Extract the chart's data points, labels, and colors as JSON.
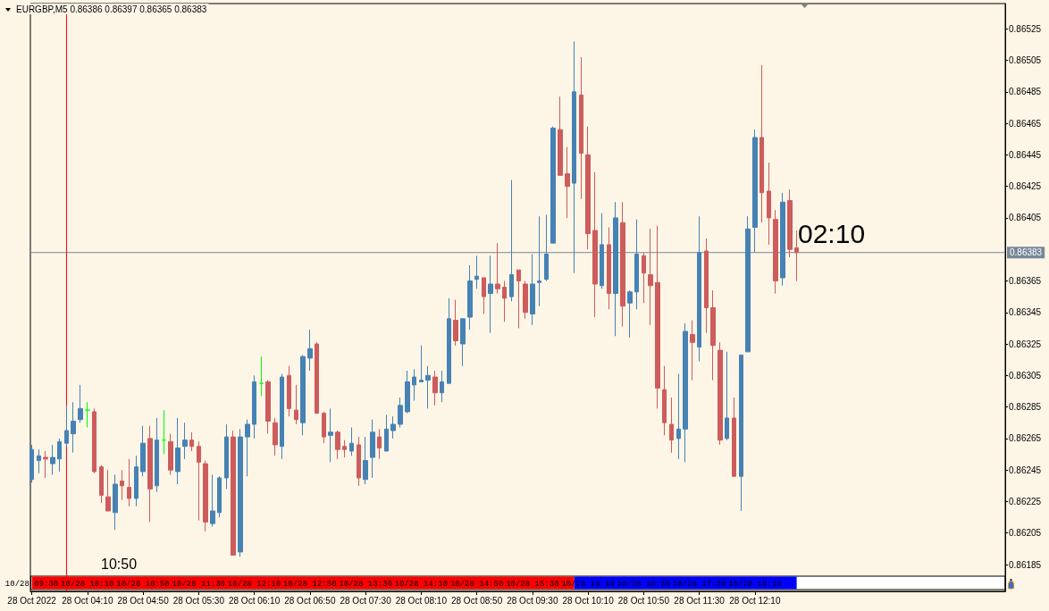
{
  "chart_data": {
    "type": "candlestick",
    "title": "EURGBP,M5 0.86386 0.86397 0.86365 0.86383",
    "x": [
      "2022-10-28T03:30",
      "2022-10-28T03:35",
      "2022-10-28T03:40",
      "2022-10-28T03:45",
      "2022-10-28T03:50",
      "2022-10-28T03:55",
      "2022-10-28T04:00",
      "2022-10-28T04:05",
      "2022-10-28T04:10",
      "2022-10-28T04:15",
      "2022-10-28T04:20",
      "2022-10-28T04:25",
      "2022-10-28T04:30",
      "2022-10-28T04:35",
      "2022-10-28T04:40",
      "2022-10-28T04:45",
      "2022-10-28T04:50",
      "2022-10-28T04:55",
      "2022-10-28T05:00",
      "2022-10-28T05:05",
      "2022-10-28T05:10",
      "2022-10-28T05:15",
      "2022-10-28T05:20",
      "2022-10-28T05:25",
      "2022-10-28T05:30",
      "2022-10-28T05:35",
      "2022-10-28T05:40",
      "2022-10-28T05:45",
      "2022-10-28T05:50",
      "2022-10-28T05:55",
      "2022-10-28T06:00",
      "2022-10-28T06:05",
      "2022-10-28T06:10",
      "2022-10-28T06:15",
      "2022-10-28T06:20",
      "2022-10-28T06:25",
      "2022-10-28T06:30",
      "2022-10-28T06:35",
      "2022-10-28T06:40",
      "2022-10-28T06:45",
      "2022-10-28T06:50",
      "2022-10-28T06:55",
      "2022-10-28T07:00",
      "2022-10-28T07:05",
      "2022-10-28T07:10",
      "2022-10-28T07:15",
      "2022-10-28T07:20",
      "2022-10-28T07:25",
      "2022-10-28T07:30",
      "2022-10-28T07:35",
      "2022-10-28T07:40",
      "2022-10-28T07:45",
      "2022-10-28T07:50",
      "2022-10-28T07:55",
      "2022-10-28T08:00",
      "2022-10-28T08:05",
      "2022-10-28T08:10",
      "2022-10-28T08:15",
      "2022-10-28T08:20",
      "2022-10-28T08:25",
      "2022-10-28T08:30",
      "2022-10-28T08:35",
      "2022-10-28T08:40",
      "2022-10-28T08:45",
      "2022-10-28T08:50",
      "2022-10-28T08:55",
      "2022-10-28T09:00",
      "2022-10-28T09:05",
      "2022-10-28T09:10",
      "2022-10-28T09:15",
      "2022-10-28T09:20",
      "2022-10-28T09:25",
      "2022-10-28T09:30",
      "2022-10-28T09:35",
      "2022-10-28T09:40",
      "2022-10-28T09:45",
      "2022-10-28T09:50",
      "2022-10-28T09:55",
      "2022-10-28T10:00",
      "2022-10-28T10:05",
      "2022-10-28T10:10",
      "2022-10-28T10:15",
      "2022-10-28T10:20",
      "2022-10-28T10:25",
      "2022-10-28T10:30",
      "2022-10-28T10:35",
      "2022-10-28T10:40",
      "2022-10-28T10:45",
      "2022-10-28T10:50",
      "2022-10-28T10:55",
      "2022-10-28T11:00",
      "2022-10-28T11:05",
      "2022-10-28T11:10",
      "2022-10-28T11:15",
      "2022-10-28T11:20",
      "2022-10-28T11:25",
      "2022-10-28T11:30",
      "2022-10-28T11:35",
      "2022-10-28T11:40",
      "2022-10-28T11:45",
      "2022-10-28T11:50",
      "2022-10-28T11:55",
      "2022-10-28T12:00",
      "2022-10-28T12:05",
      "2022-10-28T12:10",
      "2022-10-28T12:15",
      "2022-10-28T12:20",
      "2022-10-28T12:25",
      "2022-10-28T12:30",
      "2022-10-28T12:35",
      "2022-10-28T12:40"
    ],
    "ohlc": [
      [
        0.86239,
        0.86261,
        0.86237,
        0.86258
      ],
      [
        0.86251,
        0.86258,
        0.86243,
        0.86254
      ],
      [
        0.86253,
        0.86257,
        0.8624,
        0.86252
      ],
      [
        0.86249,
        0.86261,
        0.86242,
        0.86253
      ],
      [
        0.86252,
        0.86265,
        0.86244,
        0.86263
      ],
      [
        0.86262,
        0.86286,
        0.8626,
        0.8627
      ],
      [
        0.86268,
        0.86288,
        0.86256,
        0.86276
      ],
      [
        0.86277,
        0.86299,
        0.86275,
        0.86284
      ],
      [
        0.86283,
        0.86288,
        0.86272,
        0.86283
      ],
      [
        0.86282,
        0.86284,
        0.86243,
        0.86244
      ],
      [
        0.86247,
        0.86248,
        0.86224,
        0.86229
      ],
      [
        0.86228,
        0.86245,
        0.86219,
        0.86219
      ],
      [
        0.86218,
        0.86242,
        0.86207,
        0.86236
      ],
      [
        0.86238,
        0.86245,
        0.86226,
        0.86235
      ],
      [
        0.86234,
        0.86252,
        0.86222,
        0.86227
      ],
      [
        0.86227,
        0.86254,
        0.86222,
        0.86247
      ],
      [
        0.86244,
        0.86273,
        0.86241,
        0.86262
      ],
      [
        0.86265,
        0.86273,
        0.86212,
        0.86233
      ],
      [
        0.86235,
        0.86278,
        0.86231,
        0.86264
      ],
      [
        0.86264,
        0.86283,
        0.86255,
        0.86264
      ],
      [
        0.86263,
        0.86268,
        0.86242,
        0.86245
      ],
      [
        0.86244,
        0.86278,
        0.86236,
        0.86259
      ],
      [
        0.8626,
        0.86275,
        0.86252,
        0.86264
      ],
      [
        0.86264,
        0.86269,
        0.86257,
        0.8626
      ],
      [
        0.8626,
        0.86263,
        0.86213,
        0.8625
      ],
      [
        0.86249,
        0.86251,
        0.86206,
        0.86212
      ],
      [
        0.86211,
        0.86242,
        0.86209,
        0.86219
      ],
      [
        0.86218,
        0.86241,
        0.86215,
        0.8624
      ],
      [
        0.8624,
        0.86274,
        0.86233,
        0.86266
      ],
      [
        0.86266,
        0.8627,
        0.86191,
        0.86191
      ],
      [
        0.86193,
        0.86271,
        0.8619,
        0.86266
      ],
      [
        0.86266,
        0.86277,
        0.86241,
        0.86274
      ],
      [
        0.86274,
        0.86305,
        0.86265,
        0.86301
      ],
      [
        0.863,
        0.86317,
        0.86292,
        0.863
      ],
      [
        0.86301,
        0.86302,
        0.86268,
        0.86276
      ],
      [
        0.86275,
        0.86278,
        0.86254,
        0.86261
      ],
      [
        0.8626,
        0.86306,
        0.86252,
        0.86304
      ],
      [
        0.86305,
        0.86311,
        0.86279,
        0.86284
      ],
      [
        0.86283,
        0.86299,
        0.86274,
        0.86277
      ],
      [
        0.86275,
        0.86318,
        0.86267,
        0.86317
      ],
      [
        0.86316,
        0.86334,
        0.86308,
        0.86322
      ],
      [
        0.86325,
        0.86326,
        0.86281,
        0.86281
      ],
      [
        0.86281,
        0.86282,
        0.86262,
        0.86266
      ],
      [
        0.86267,
        0.86284,
        0.8625,
        0.86269
      ],
      [
        0.86269,
        0.8627,
        0.86252,
        0.86258
      ],
      [
        0.8626,
        0.86264,
        0.86253,
        0.86258
      ],
      [
        0.86257,
        0.86272,
        0.86254,
        0.86262
      ],
      [
        0.86261,
        0.86266,
        0.86235,
        0.8624
      ],
      [
        0.86239,
        0.86266,
        0.86236,
        0.86251
      ],
      [
        0.86253,
        0.86277,
        0.8624,
        0.86269
      ],
      [
        0.86266,
        0.86271,
        0.86252,
        0.86259
      ],
      [
        0.86257,
        0.8628,
        0.86257,
        0.86271
      ],
      [
        0.8627,
        0.86279,
        0.86265,
        0.86274
      ],
      [
        0.86274,
        0.86291,
        0.86272,
        0.86286
      ],
      [
        0.86282,
        0.86308,
        0.86281,
        0.86301
      ],
      [
        0.86299,
        0.86309,
        0.86289,
        0.86304
      ],
      [
        0.86301,
        0.86324,
        0.86301,
        0.86302
      ],
      [
        0.86302,
        0.86311,
        0.86284,
        0.86305
      ],
      [
        0.86304,
        0.86308,
        0.86286,
        0.86294
      ],
      [
        0.86294,
        0.86308,
        0.86288,
        0.86301
      ],
      [
        0.863,
        0.86354,
        0.863,
        0.86341
      ],
      [
        0.8634,
        0.86353,
        0.86324,
        0.86327
      ],
      [
        0.86325,
        0.86341,
        0.86311,
        0.86341
      ],
      [
        0.86342,
        0.86375,
        0.86334,
        0.86365
      ],
      [
        0.86366,
        0.86381,
        0.8636,
        0.86368
      ],
      [
        0.86367,
        0.86367,
        0.86344,
        0.86355
      ],
      [
        0.86357,
        0.86381,
        0.86332,
        0.86363
      ],
      [
        0.86363,
        0.86389,
        0.86357,
        0.8636
      ],
      [
        0.86361,
        0.86365,
        0.86339,
        0.86354
      ],
      [
        0.86355,
        0.86429,
        0.86352,
        0.86369
      ],
      [
        0.86372,
        0.86372,
        0.86335,
        0.86365
      ],
      [
        0.86363,
        0.86365,
        0.86341,
        0.86345
      ],
      [
        0.86344,
        0.86382,
        0.86337,
        0.86363
      ],
      [
        0.86364,
        0.86406,
        0.86349,
        0.86365
      ],
      [
        0.86366,
        0.86407,
        0.86365,
        0.86382
      ],
      [
        0.86389,
        0.86463,
        0.86389,
        0.86462
      ],
      [
        0.86461,
        0.86482,
        0.86432,
        0.86432
      ],
      [
        0.86433,
        0.8645,
        0.86405,
        0.86425
      ],
      [
        0.86427,
        0.86517,
        0.8637,
        0.86485
      ],
      [
        0.86483,
        0.86507,
        0.86417,
        0.86446
      ],
      [
        0.86445,
        0.86463,
        0.86385,
        0.86395
      ],
      [
        0.86397,
        0.86434,
        0.86342,
        0.86363
      ],
      [
        0.86362,
        0.86408,
        0.8636,
        0.86388
      ],
      [
        0.86388,
        0.86399,
        0.86347,
        0.86357
      ],
      [
        0.86357,
        0.86415,
        0.8633,
        0.86405
      ],
      [
        0.86402,
        0.86415,
        0.86336,
        0.86349
      ],
      [
        0.86351,
        0.86359,
        0.86329,
        0.86358
      ],
      [
        0.86358,
        0.86404,
        0.86347,
        0.86382
      ],
      [
        0.86381,
        0.86383,
        0.86351,
        0.8637
      ],
      [
        0.86369,
        0.86398,
        0.86337,
        0.86362
      ],
      [
        0.86364,
        0.864,
        0.86284,
        0.86297
      ],
      [
        0.86296,
        0.86311,
        0.86267,
        0.86275
      ],
      [
        0.86274,
        0.86291,
        0.86256,
        0.86264
      ],
      [
        0.86265,
        0.86306,
        0.86252,
        0.86271
      ],
      [
        0.86271,
        0.86338,
        0.8625,
        0.86333
      ],
      [
        0.86331,
        0.8634,
        0.86302,
        0.86326
      ],
      [
        0.86323,
        0.86406,
        0.86314,
        0.86383
      ],
      [
        0.86384,
        0.86392,
        0.86332,
        0.86348
      ],
      [
        0.86348,
        0.86359,
        0.86302,
        0.86324
      ],
      [
        0.86321,
        0.86326,
        0.86261,
        0.86264
      ],
      [
        0.86265,
        0.8632,
        0.86264,
        0.86278
      ],
      [
        0.86278,
        0.86291,
        0.86241,
        0.86241
      ],
      [
        0.86241,
        0.86318,
        0.86219,
        0.86318
      ],
      [
        0.8632,
        0.86406,
        0.8632,
        0.86398
      ],
      [
        0.86399,
        0.86461,
        0.86383,
        0.86456
      ],
      [
        0.86456,
        0.86502,
        0.86402,
        0.86421
      ],
      [
        0.86422,
        0.8644,
        0.86388,
        0.86405
      ],
      [
        0.86404,
        0.8641,
        0.86357,
        0.86365
      ],
      [
        0.86367,
        0.86421,
        0.86362,
        0.86415
      ],
      [
        0.86416,
        0.86423,
        0.8638,
        0.86385
      ],
      [
        0.86386,
        0.86397,
        0.86365,
        0.86383
      ]
    ],
    "colors": [
      "#4682b4",
      "#4682b4",
      "#cd5c5c",
      "#4682b4",
      "#4682b4",
      "#4682b4",
      "#4682b4",
      "#4682b4",
      "#00ff00",
      "#cd5c5c",
      "#cd5c5c",
      "#cd5c5c",
      "#4682b4",
      "#cd5c5c",
      "#cd5c5c",
      "#4682b4",
      "#4682b4",
      "#cd5c5c",
      "#4682b4",
      "#00ff00",
      "#cd5c5c",
      "#4682b4",
      "#4682b4",
      "#cd5c5c",
      "#cd5c5c",
      "#cd5c5c",
      "#4682b4",
      "#4682b4",
      "#4682b4",
      "#cd5c5c",
      "#4682b4",
      "#4682b4",
      "#4682b4",
      "#00ff00",
      "#cd5c5c",
      "#cd5c5c",
      "#4682b4",
      "#cd5c5c",
      "#cd5c5c",
      "#4682b4",
      "#4682b4",
      "#cd5c5c",
      "#cd5c5c",
      "#4682b4",
      "#cd5c5c",
      "#cd5c5c",
      "#4682b4",
      "#cd5c5c",
      "#4682b4",
      "#4682b4",
      "#cd5c5c",
      "#4682b4",
      "#4682b4",
      "#4682b4",
      "#4682b4",
      "#4682b4",
      "#4682b4",
      "#4682b4",
      "#cd5c5c",
      "#4682b4",
      "#4682b4",
      "#cd5c5c",
      "#4682b4",
      "#4682b4",
      "#4682b4",
      "#cd5c5c",
      "#4682b4",
      "#cd5c5c",
      "#cd5c5c",
      "#4682b4",
      "#cd5c5c",
      "#cd5c5c",
      "#4682b4",
      "#4682b4",
      "#4682b4",
      "#4682b4",
      "#cd5c5c",
      "#cd5c5c",
      "#4682b4",
      "#cd5c5c",
      "#cd5c5c",
      "#cd5c5c",
      "#4682b4",
      "#cd5c5c",
      "#4682b4",
      "#cd5c5c",
      "#4682b4",
      "#4682b4",
      "#cd5c5c",
      "#cd5c5c",
      "#cd5c5c",
      "#cd5c5c",
      "#cd5c5c",
      "#4682b4",
      "#4682b4",
      "#cd5c5c",
      "#4682b4",
      "#cd5c5c",
      "#cd5c5c",
      "#cd5c5c",
      "#4682b4",
      "#cd5c5c",
      "#4682b4",
      "#4682b4",
      "#4682b4",
      "#cd5c5c",
      "#cd5c5c",
      "#cd5c5c",
      "#4682b4",
      "#cd5c5c",
      "#cd5c5c"
    ],
    "xlim": [
      "2022-10-28T03:29",
      "2022-10-28T15:10"
    ],
    "xticks": [
      {
        "value": "2022-10-28T03:30",
        "label": "28 Oct 2022"
      },
      {
        "value": "2022-10-28T04:10",
        "label": "28 Oct 04:10"
      },
      {
        "value": "2022-10-28T04:50",
        "label": "28 Oct 04:50"
      },
      {
        "value": "2022-10-28T05:30",
        "label": "28 Oct 05:30"
      },
      {
        "value": "2022-10-28T06:10",
        "label": "28 Oct 06:10"
      },
      {
        "value": "2022-10-28T06:50",
        "label": "28 Oct 06:50"
      },
      {
        "value": "2022-10-28T07:30",
        "label": "28 Oct 07:30"
      },
      {
        "value": "2022-10-28T08:10",
        "label": "28 Oct 08:10"
      },
      {
        "value": "2022-10-28T08:50",
        "label": "28 Oct 08:50"
      },
      {
        "value": "2022-10-28T09:30",
        "label": "28 Oct 09:30"
      },
      {
        "value": "2022-10-28T10:10",
        "label": "28 Oct 10:10"
      },
      {
        "value": "2022-10-28T10:50",
        "label": "28 Oct 10:50"
      },
      {
        "value": "2022-10-28T11:30",
        "label": "28 Oct 11:30"
      },
      {
        "value": "2022-10-28T12:10",
        "label": "28 Oct 12:10"
      }
    ],
    "x2lim": [
      "2022-10-28T09:29",
      "2022-10-28T21:10"
    ],
    "x2ticks": [
      {
        "value": "2022-10-28T09:30",
        "label": "10/28 09:30"
      },
      {
        "value": "2022-10-28T10:10",
        "label": "10/28 10:10"
      },
      {
        "value": "2022-10-28T10:50",
        "label": "10/28 10:50"
      },
      {
        "value": "2022-10-28T11:30",
        "label": "10/28 11:30"
      },
      {
        "value": "2022-10-28T12:10",
        "label": "10/28 12:10"
      },
      {
        "value": "2022-10-28T12:50",
        "label": "10/28 12:50"
      },
      {
        "value": "2022-10-28T13:30",
        "label": "10/28 13:30"
      },
      {
        "value": "2022-10-28T14:10",
        "label": "10/28 14:10"
      },
      {
        "value": "2022-10-28T14:50",
        "label": "10/28 14:50"
      },
      {
        "value": "2022-10-28T15:30",
        "label": "10/28 15:30"
      },
      {
        "value": "2022-10-28T16:10",
        "label": "10/28 16:10"
      },
      {
        "value": "2022-10-28T16:50",
        "label": "10/28 16:50"
      },
      {
        "value": "2022-10-28T17:30",
        "label": "10/28 17:30"
      },
      {
        "value": "2022-10-28T18:10",
        "label": "10/28 18:10"
      }
    ],
    "ylim": [
      0.86168,
      0.86541
    ],
    "yticks": [
      0.86185,
      0.86205,
      0.86225,
      0.86245,
      0.86265,
      0.86285,
      0.86305,
      0.86325,
      0.86345,
      0.86365,
      0.86405,
      0.86425,
      0.86445,
      0.86465,
      0.86485,
      0.86505,
      0.86525
    ],
    "ref_lines": [
      {
        "axis": "y",
        "value": 0.86383,
        "label": "0.86383",
        "color": "#778899"
      },
      {
        "axis": "x",
        "value": "2022-10-28T03:55",
        "color": "#ff0000"
      }
    ],
    "annotations": [
      "02:10",
      "10:50"
    ],
    "grid": false
  }
}
